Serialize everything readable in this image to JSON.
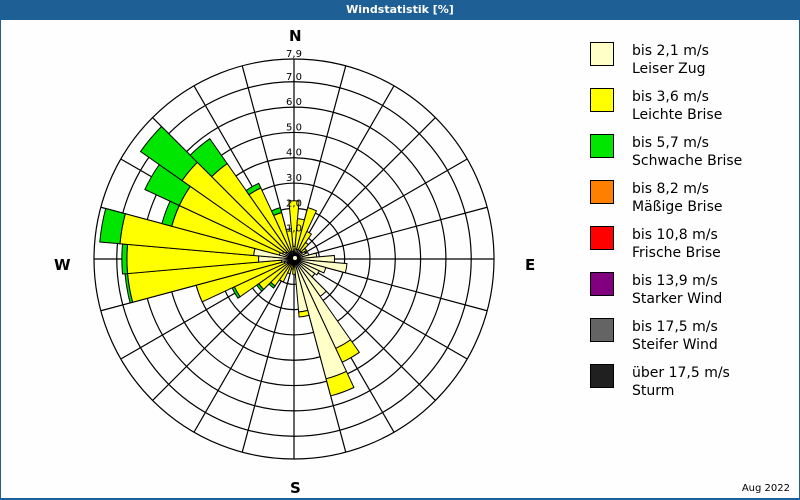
{
  "header": {
    "title": "Windstatistik [%]"
  },
  "footer": {
    "period": "Aug 2022"
  },
  "compass": {
    "n": "N",
    "e": "E",
    "s": "S",
    "w": "W"
  },
  "legend": [
    {
      "speed": "bis 2,1 m/s",
      "name": "Leiser Zug",
      "color": "#ffffc8"
    },
    {
      "speed": "bis 3,6 m/s",
      "name": "Leichte Brise",
      "color": "#ffff00"
    },
    {
      "speed": "bis 5,7 m/s",
      "name": "Schwache Brise",
      "color": "#00e600"
    },
    {
      "speed": "bis 8,2 m/s",
      "name": "Mäßige Brise",
      "color": "#ff8000"
    },
    {
      "speed": "bis 10,8 m/s",
      "name": "Frische Brise",
      "color": "#ff0000"
    },
    {
      "speed": "bis 13,9 m/s",
      "name": "Starker Wind",
      "color": "#800080"
    },
    {
      "speed": "bis 17,5 m/s",
      "name": "Steifer Wind",
      "color": "#646464"
    },
    {
      "speed": "über 17,5 m/s",
      "name": "Sturm",
      "color": "#202020"
    }
  ],
  "chart_data": {
    "type": "wind-rose",
    "title": "Windstatistik [%]",
    "unit": "%",
    "rmax": 7.9,
    "ring_labels": [
      "1,0",
      "2,0",
      "3,0",
      "4,0",
      "5,0",
      "6,0",
      "7,0",
      "7,9"
    ],
    "ring_values": [
      1,
      2,
      3,
      4,
      5,
      6,
      7,
      7.9
    ],
    "sector_width_deg": 10,
    "series": [
      "bis 2,1 m/s",
      "bis 3,6 m/s",
      "bis 5,7 m/s"
    ],
    "sectors": [
      {
        "dir": 0,
        "cum": [
          0.5,
          2.3,
          2.3
        ]
      },
      {
        "dir": 10,
        "cum": [
          0.4,
          1.6,
          1.6
        ]
      },
      {
        "dir": 20,
        "cum": [
          0.4,
          2.1,
          2.1
        ]
      },
      {
        "dir": 30,
        "cum": [
          0.4,
          1.2,
          1.2
        ]
      },
      {
        "dir": 40,
        "cum": [
          0.4,
          0.8,
          0.8
        ]
      },
      {
        "dir": 50,
        "cum": [
          0.4,
          0.6,
          0.6
        ]
      },
      {
        "dir": 60,
        "cum": [
          0.5,
          0.5,
          0.5
        ]
      },
      {
        "dir": 70,
        "cum": [
          0.6,
          0.6,
          0.6
        ]
      },
      {
        "dir": 80,
        "cum": [
          0.9,
          0.9,
          0.9
        ]
      },
      {
        "dir": 90,
        "cum": [
          1.6,
          1.6,
          1.6
        ]
      },
      {
        "dir": 100,
        "cum": [
          2.1,
          2.1,
          2.1
        ]
      },
      {
        "dir": 110,
        "cum": [
          1.3,
          1.3,
          1.3
        ]
      },
      {
        "dir": 120,
        "cum": [
          1.1,
          1.1,
          1.1
        ]
      },
      {
        "dir": 130,
        "cum": [
          1.0,
          1.0,
          1.0
        ]
      },
      {
        "dir": 140,
        "cum": [
          1.8,
          1.8,
          1.8
        ]
      },
      {
        "dir": 150,
        "cum": [
          3.9,
          4.5,
          4.5
        ]
      },
      {
        "dir": 160,
        "cum": [
          4.9,
          5.6,
          5.6
        ]
      },
      {
        "dir": 170,
        "cum": [
          2.1,
          2.3,
          2.3
        ]
      },
      {
        "dir": 180,
        "cum": [
          0.3,
          0.6,
          0.6
        ]
      },
      {
        "dir": 190,
        "cum": [
          0.2,
          0.4,
          0.4
        ]
      },
      {
        "dir": 200,
        "cum": [
          0.2,
          0.6,
          0.6
        ]
      },
      {
        "dir": 210,
        "cum": [
          0.2,
          1.0,
          1.0
        ]
      },
      {
        "dir": 220,
        "cum": [
          0.2,
          1.3,
          1.4
        ]
      },
      {
        "dir": 230,
        "cum": [
          0.3,
          1.7,
          1.8
        ]
      },
      {
        "dir": 240,
        "cum": [
          0.3,
          2.6,
          2.7
        ]
      },
      {
        "dir": 250,
        "cum": [
          0.4,
          4.0,
          4.0
        ]
      },
      {
        "dir": 260,
        "cum": [
          0.5,
          6.6,
          6.7
        ]
      },
      {
        "dir": 270,
        "cum": [
          1.4,
          6.6,
          6.8
        ]
      },
      {
        "dir": 280,
        "cum": [
          1.6,
          6.9,
          7.7
        ]
      },
      {
        "dir": 290,
        "cum": [
          0.6,
          5.0,
          5.4
        ]
      },
      {
        "dir": 300,
        "cum": [
          0.5,
          5.0,
          6.5
        ]
      },
      {
        "dir": 310,
        "cum": [
          0.4,
          5.4,
          7.4
        ]
      },
      {
        "dir": 320,
        "cum": [
          0.3,
          4.6,
          5.8
        ]
      },
      {
        "dir": 330,
        "cum": [
          0.3,
          3.1,
          3.3
        ]
      },
      {
        "dir": 340,
        "cum": [
          0.3,
          1.9,
          2.1
        ]
      },
      {
        "dir": 350,
        "cum": [
          0.3,
          1.2,
          1.2
        ]
      }
    ]
  }
}
